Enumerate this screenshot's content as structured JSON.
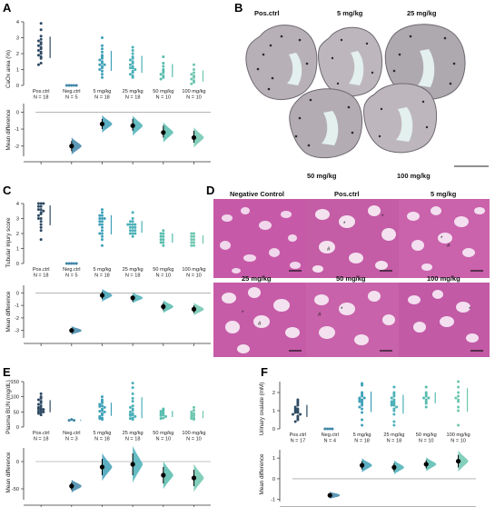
{
  "colors": {
    "c0": "#2e4a63",
    "c1": "#3f86a8",
    "c2": "#3fa0b8",
    "c3": "#4bb0b8",
    "c4": "#56bcae",
    "c5": "#6ec6b0",
    "axis": "#333333"
  },
  "panels": [
    {
      "label": "A",
      "ylabel": "CaOx area (%)",
      "diff_ylabel": "Mean difference",
      "groups": [
        "Pos.ctrl",
        "Neg.ctrl",
        "5 mg/kg",
        "25 mg/kg",
        "50 mg/kg",
        "100 mg/kg"
      ],
      "ns": [
        "N = 18",
        "N = 5",
        "N = 18",
        "N = 18",
        "N = 10",
        "N = 10"
      ],
      "yticks": [
        "0",
        "1",
        "2",
        "3",
        "4"
      ],
      "diff_yticks": [
        "0",
        "-1",
        "-2"
      ]
    },
    {
      "label": "C",
      "ylabel": "Tubular injury score",
      "diff_ylabel": "Mean difference",
      "groups": [
        "Pos.ctrl",
        "Neg.ctrl",
        "5 mg/kg",
        "25 mg/kg",
        "50 mg/kg",
        "100 mg/kg"
      ],
      "ns": [
        "N = 18",
        "N = 5",
        "N = 18",
        "N = 18",
        "N = 10",
        "N = 10"
      ],
      "yticks": [
        "0",
        "1",
        "2",
        "3",
        "4"
      ],
      "diff_yticks": [
        "0",
        "-1",
        "-2",
        "-3"
      ]
    },
    {
      "label": "E",
      "ylabel": "Plasma BUN (mg/dL)",
      "diff_ylabel": "Mean difference",
      "groups": [
        "Pos.ctrl",
        "Neg.ctrl",
        "5 mg/kg",
        "25 mg/kg",
        "50 mg/kg",
        "100 mg/kg"
      ],
      "ns": [
        "N = 18",
        "N = 3",
        "N = 18",
        "N = 18",
        "N = 10",
        "N = 10"
      ],
      "yticks": [
        "0",
        "50",
        "100",
        "150"
      ],
      "diff_yticks": [
        "0",
        "-50"
      ]
    },
    {
      "label": "F",
      "ylabel": "Urinary oxalate (mM)",
      "diff_ylabel": "Mean difference",
      "groups": [
        "Pos.ctrl",
        "Neg.ctrl",
        "5 mg/kg",
        "25 mg/kg",
        "50 mg/kg",
        "100 mg/kg"
      ],
      "ns": [
        "N = 17",
        "N = 4",
        "N = 18",
        "N = 18",
        "N = 10",
        "N = 10"
      ],
      "yticks": [
        "0",
        "1",
        "2"
      ],
      "diff_yticks": [
        "1",
        "0",
        "-1"
      ]
    }
  ],
  "chart_data": [
    {
      "type": "scatter",
      "panel": "A",
      "ylabel": "CaOx area (%)",
      "ylim": [
        0,
        4
      ],
      "categories": [
        "Pos.ctrl",
        "Neg.ctrl",
        "5 mg/kg",
        "25 mg/kg",
        "50 mg/kg",
        "100 mg/kg"
      ],
      "values": [
        [
          3.9,
          3.5,
          3.1,
          2.9,
          2.8,
          2.7,
          2.6,
          2.5,
          2.4,
          2.3,
          2.2,
          2.1,
          2.0,
          1.9,
          1.8,
          1.7,
          1.4,
          1.3
        ],
        [
          0.0,
          0.0,
          0.0,
          0.0,
          0.0
        ],
        [
          3.0,
          2.5,
          2.3,
          2.1,
          1.9,
          1.8,
          1.7,
          1.6,
          1.5,
          1.4,
          1.3,
          1.3,
          1.2,
          1.1,
          1.0,
          0.9,
          0.7,
          0.5
        ],
        [
          2.4,
          2.2,
          2.0,
          1.8,
          1.7,
          1.6,
          1.5,
          1.4,
          1.3,
          1.2,
          1.1,
          1.1,
          1.0,
          0.9,
          0.8,
          0.7,
          0.6,
          0.5
        ],
        [
          1.8,
          1.4,
          1.2,
          1.0,
          0.9,
          0.8,
          0.7,
          0.6,
          0.5,
          0.4
        ],
        [
          1.3,
          1.0,
          0.8,
          0.7,
          0.6,
          0.5,
          0.4,
          0.3,
          0.2,
          0.1
        ]
      ],
      "diff": {
        "ylim": [
          -2.6,
          0.5
        ],
        "means": [
          -2.0,
          -0.7,
          -0.8,
          -1.2,
          -1.5
        ],
        "ci": [
          [
            -2.3,
            -1.7
          ],
          [
            -1.0,
            -0.4
          ],
          [
            -1.1,
            -0.4
          ],
          [
            -1.5,
            -0.8
          ],
          [
            -1.8,
            -1.1
          ]
        ]
      }
    },
    {
      "type": "scatter",
      "panel": "C",
      "ylabel": "Tubular injury score",
      "ylim": [
        0,
        4
      ],
      "categories": [
        "Pos.ctrl",
        "Neg.ctrl",
        "5 mg/kg",
        "25 mg/kg",
        "50 mg/kg",
        "100 mg/kg"
      ],
      "values": [
        [
          4.0,
          4.0,
          4.0,
          3.8,
          3.8,
          3.6,
          3.6,
          3.5,
          3.4,
          3.3,
          3.2,
          3.0,
          3.0,
          2.8,
          2.6,
          2.4,
          2.2,
          1.6
        ],
        [
          0.0,
          0.0,
          0.0,
          0.0,
          0.0
        ],
        [
          3.6,
          3.4,
          3.2,
          3.2,
          3.0,
          3.0,
          3.0,
          2.8,
          2.8,
          2.6,
          2.6,
          2.4,
          2.2,
          2.0,
          2.0,
          1.8,
          1.6,
          1.2
        ],
        [
          3.4,
          3.0,
          2.8,
          2.8,
          2.6,
          2.6,
          2.6,
          2.6,
          2.4,
          2.4,
          2.4,
          2.2,
          2.2,
          2.2,
          2.0,
          2.0,
          2.0,
          1.8
        ],
        [
          2.2,
          2.0,
          2.0,
          1.8,
          1.8,
          1.6,
          1.6,
          1.4,
          1.4,
          1.2
        ],
        [
          2.0,
          2.0,
          1.8,
          1.8,
          1.6,
          1.6,
          1.4,
          1.4,
          1.2,
          1.2
        ]
      ],
      "diff": {
        "ylim": [
          -3.6,
          0.6
        ],
        "means": [
          -3.0,
          -0.2,
          -0.4,
          -1.1,
          -1.3
        ],
        "ci": [
          [
            -3.2,
            -2.8
          ],
          [
            -0.5,
            0.1
          ],
          [
            -0.7,
            -0.2
          ],
          [
            -1.4,
            -0.8
          ],
          [
            -1.6,
            -1.0
          ]
        ]
      }
    },
    {
      "type": "scatter",
      "panel": "E",
      "ylabel": "Plasma BUN (mg/dL)",
      "ylim": [
        0,
        150
      ],
      "categories": [
        "Pos.ctrl",
        "Neg.ctrl",
        "5 mg/kg",
        "25 mg/kg",
        "50 mg/kg",
        "100 mg/kg"
      ],
      "values": [
        [
          110,
          100,
          95,
          90,
          85,
          80,
          75,
          70,
          65,
          62,
          60,
          58,
          55,
          52,
          50,
          48,
          45,
          40
        ],
        [
          25,
          22,
          22
        ],
        [
          100,
          90,
          85,
          80,
          75,
          70,
          68,
          65,
          60,
          55,
          52,
          50,
          45,
          40,
          35,
          30,
          28,
          25
        ],
        [
          145,
          130,
          110,
          95,
          85,
          70,
          65,
          60,
          55,
          50,
          45,
          42,
          40,
          38,
          35,
          30,
          28,
          25
        ],
        [
          60,
          55,
          52,
          48,
          45,
          40,
          38,
          35,
          30,
          28
        ],
        [
          65,
          55,
          50,
          45,
          42,
          38,
          35,
          30,
          28,
          25
        ]
      ],
      "diff": {
        "ylim": [
          -70,
          25
        ],
        "means": [
          -45,
          -10,
          -5,
          -25,
          -30
        ],
        "ci": [
          [
            -52,
            -38
          ],
          [
            -25,
            5
          ],
          [
            -25,
            15
          ],
          [
            -40,
            -10
          ],
          [
            -45,
            -15
          ]
        ]
      }
    },
    {
      "type": "scatter",
      "panel": "F",
      "ylabel": "Urinary oxalate (mM)",
      "ylim": [
        0,
        2.6
      ],
      "categories": [
        "Pos.ctrl",
        "Neg.ctrl",
        "5 mg/kg",
        "25 mg/kg",
        "50 mg/kg",
        "100 mg/kg"
      ],
      "values": [
        [
          1.6,
          1.5,
          1.4,
          1.3,
          1.2,
          1.1,
          1.1,
          1.0,
          1.0,
          0.9,
          0.9,
          0.8,
          0.8,
          0.7,
          0.6,
          0.5,
          0.4
        ],
        [
          0.0,
          0.0,
          0.0,
          0.0
        ],
        [
          2.5,
          2.4,
          2.0,
          1.9,
          1.8,
          1.7,
          1.7,
          1.6,
          1.6,
          1.5,
          1.5,
          1.4,
          1.3,
          1.2,
          1.1,
          0.9,
          0.5,
          0.2
        ],
        [
          2.3,
          2.0,
          1.9,
          1.8,
          1.7,
          1.6,
          1.5,
          1.5,
          1.4,
          1.4,
          1.3,
          1.3,
          1.2,
          1.1,
          1.0,
          0.8,
          0.4,
          0.2
        ],
        [
          2.3,
          2.0,
          1.9,
          1.8,
          1.7,
          1.7,
          1.6,
          1.5,
          1.4,
          1.2
        ],
        [
          2.6,
          2.3,
          2.0,
          1.8,
          1.7,
          1.6,
          1.5,
          1.2,
          1.0,
          0.2
        ]
      ],
      "diff": {
        "ylim": [
          -1.1,
          1.4
        ],
        "means": [
          -0.8,
          0.65,
          0.55,
          0.7,
          0.85
        ],
        "ci": [
          [
            -0.9,
            -0.7
          ],
          [
            0.45,
            0.85
          ],
          [
            0.35,
            0.75
          ],
          [
            0.5,
            0.9
          ],
          [
            0.55,
            1.15
          ]
        ]
      }
    }
  ],
  "panel_B": {
    "label": "B",
    "titles": [
      "Pos.ctrl",
      "5 mg/kg",
      "25 mg/kg",
      "50 mg/kg",
      "100 mg/kg"
    ]
  },
  "panel_D": {
    "label": "D",
    "titles": [
      "Negative Control",
      "Pos.ctrl",
      "5 mg/kg",
      "25 mg/kg",
      "50 mg/kg",
      "100 mg/kg"
    ]
  }
}
